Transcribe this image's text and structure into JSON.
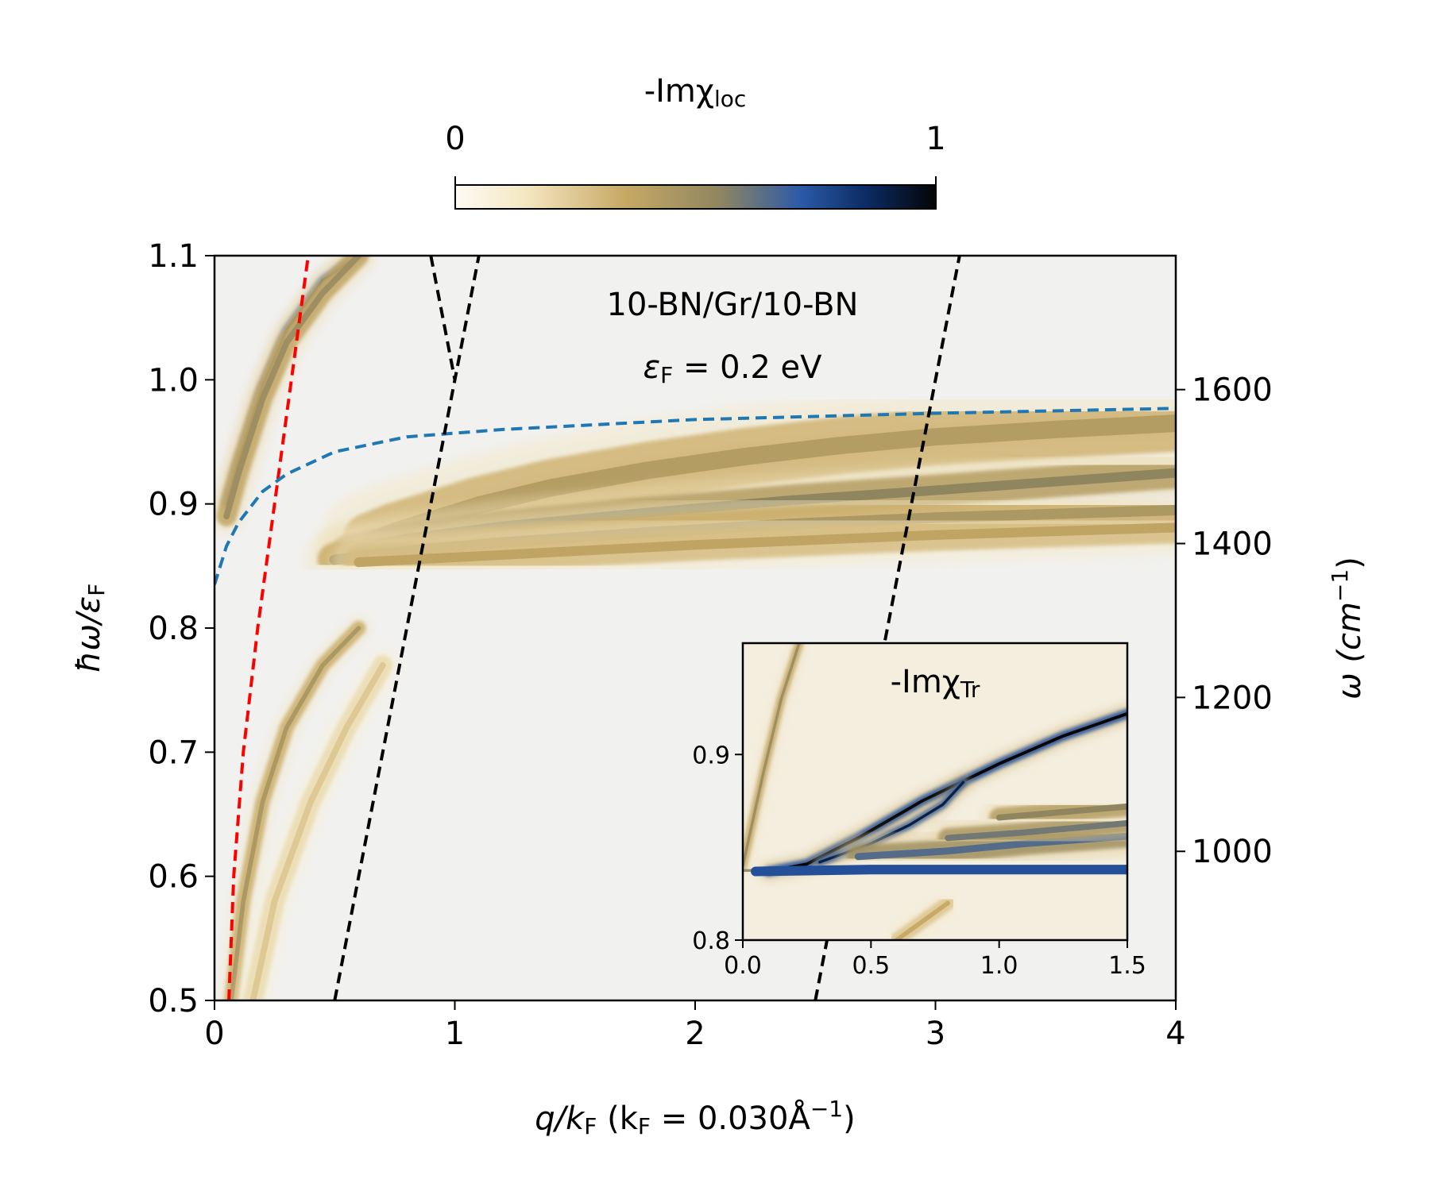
{
  "chart_data": {
    "type": "heatmap",
    "title": "",
    "annotation": {
      "line1": "10-BN/Gr/10-BN",
      "line2_main": "ε",
      "line2_sub": "F",
      "line2_rest": " = 0.2 eV"
    },
    "colorbar": {
      "label_main": "-Imχ",
      "label_sub": "loc",
      "min_label": "0",
      "max_label": "1",
      "range": [
        0,
        1
      ],
      "colors": [
        "#fdfbf4",
        "#f3e6c0",
        "#c8a965",
        "#8f8660",
        "#2b5aa8",
        "#0a2a60",
        "#050505"
      ]
    },
    "xaxis": {
      "label_main": "q/k",
      "label_sub": "F",
      "label_paren": " (k",
      "label_paren_sub": "F",
      "label_rest": " = 0.030Å",
      "label_sup": "−1",
      "label_close": ")",
      "range": [
        0,
        4
      ],
      "ticks": [
        0,
        1,
        2,
        3,
        4
      ],
      "tick_labels": [
        "0",
        "1",
        "2",
        "3",
        "4"
      ]
    },
    "yaxis": {
      "label_main": "ħω/ε",
      "label_sub": "F",
      "range": [
        0.5,
        1.1
      ],
      "ticks": [
        0.5,
        0.6,
        0.7,
        0.8,
        0.9,
        1.0,
        1.1
      ],
      "tick_labels": [
        "0.5",
        "0.6",
        "0.7",
        "0.8",
        "0.9",
        "1.0",
        "1.1"
      ]
    },
    "y2axis": {
      "label_main": "ω (cm",
      "label_sup": "−1",
      "label_close": ")",
      "ticks": [
        1000,
        1200,
        1400,
        1600
      ],
      "tick_labels": [
        "1000",
        "1200",
        "1400",
        "1600"
      ],
      "tick_positions_in_y": [
        0.6201,
        0.7441,
        0.8681,
        0.9921
      ]
    },
    "dashed_lines": [
      {
        "name": "red",
        "color": "#ff0000",
        "x": [
          0.06,
          0.08,
          0.12,
          0.18,
          0.25,
          0.32,
          0.39
        ],
        "y": [
          0.5,
          0.6,
          0.7,
          0.8,
          0.9,
          1.0,
          1.1
        ]
      },
      {
        "name": "blue",
        "color": "#1f77b4",
        "x": [
          0.0,
          0.05,
          0.1,
          0.2,
          0.3,
          0.5,
          0.8,
          1.2,
          2.0,
          3.0,
          4.0
        ],
        "y": [
          0.835,
          0.866,
          0.885,
          0.91,
          0.924,
          0.942,
          0.954,
          0.96,
          0.968,
          0.973,
          0.977
        ]
      },
      {
        "name": "black-1",
        "color": "#000000",
        "x": [
          0.5,
          1.1
        ],
        "y": [
          0.5,
          1.1
        ]
      },
      {
        "name": "black-2",
        "color": "#000000",
        "x": [
          0.9,
          1.0
        ],
        "y": [
          1.1,
          1.0
        ]
      },
      {
        "name": "black-3",
        "color": "#000000",
        "x": [
          2.5,
          3.1
        ],
        "y": [
          0.5,
          1.1
        ]
      }
    ],
    "bands": [
      {
        "name": "upper-left-bright",
        "intensity": 1.0,
        "width": 6,
        "x": [
          0.05,
          0.1,
          0.2,
          0.3,
          0.45,
          0.6
        ],
        "y": [
          0.9,
          0.935,
          0.995,
          1.04,
          1.08,
          1.1
        ]
      },
      {
        "name": "upper-left-shoulder",
        "intensity": 0.5,
        "width": 14,
        "x": [
          0.05,
          0.1,
          0.2,
          0.3,
          0.45,
          0.6
        ],
        "y": [
          0.89,
          0.925,
          0.985,
          1.03,
          1.07,
          1.1
        ]
      },
      {
        "name": "main-bright",
        "intensity": 1.0,
        "width": 8,
        "x": [
          0.65,
          0.75,
          0.9,
          1.1,
          1.4,
          1.8,
          2.2,
          2.6,
          3.0,
          3.5,
          4.0
        ],
        "y": [
          0.87,
          0.878,
          0.887,
          0.899,
          0.913,
          0.927,
          0.938,
          0.947,
          0.954,
          0.96,
          0.965
        ]
      },
      {
        "name": "main-glow",
        "intensity": 0.42,
        "width": 40,
        "x": [
          0.65,
          0.75,
          0.9,
          1.1,
          1.4,
          1.8,
          2.2,
          2.6,
          3.0,
          3.5,
          4.0
        ],
        "y": [
          0.87,
          0.878,
          0.887,
          0.899,
          0.913,
          0.927,
          0.938,
          0.947,
          0.954,
          0.96,
          0.965
        ]
      },
      {
        "name": "second-band",
        "intensity": 0.55,
        "width": 22,
        "x": [
          0.55,
          0.8,
          1.2,
          1.8,
          2.4,
          3.0,
          3.5,
          4.0
        ],
        "y": [
          0.862,
          0.872,
          0.882,
          0.893,
          0.903,
          0.911,
          0.918,
          0.925
        ]
      },
      {
        "name": "third-band",
        "intensity": 0.45,
        "width": 24,
        "x": [
          0.5,
          0.8,
          1.2,
          1.8,
          2.4,
          3.0,
          3.5,
          4.0
        ],
        "y": [
          0.855,
          0.862,
          0.869,
          0.877,
          0.884,
          0.889,
          0.892,
          0.895
        ]
      },
      {
        "name": "fourth-band",
        "intensity": 0.38,
        "width": 22,
        "x": [
          0.6,
          1.0,
          1.5,
          2.0,
          2.5,
          3.0,
          3.5,
          4.0
        ],
        "y": [
          0.853,
          0.857,
          0.862,
          0.867,
          0.871,
          0.875,
          0.878,
          0.881
        ]
      },
      {
        "name": "lower-left-1",
        "intensity": 0.45,
        "width": 10,
        "x": [
          0.07,
          0.12,
          0.2,
          0.3,
          0.45,
          0.6
        ],
        "y": [
          0.5,
          0.58,
          0.66,
          0.72,
          0.77,
          0.8
        ]
      },
      {
        "name": "lower-left-2",
        "intensity": 0.25,
        "width": 14,
        "x": [
          0.16,
          0.25,
          0.4,
          0.55,
          0.7
        ],
        "y": [
          0.5,
          0.58,
          0.66,
          0.72,
          0.77
        ]
      }
    ],
    "inset": {
      "label_main": "-Imχ",
      "label_sub": "Tr",
      "xrange": [
        0,
        1.5
      ],
      "yrange": [
        0.8,
        0.96
      ],
      "xticks": [
        0,
        0.5,
        1.0,
        1.5
      ],
      "xtick_labels": [
        "0.0",
        "0.5",
        "1.0",
        "1.5"
      ],
      "yticks": [
        0.8,
        0.9
      ],
      "ytick_labels": [
        "0.8",
        "0.9"
      ],
      "bands": [
        {
          "name": "inset-left",
          "intensity": 0.5,
          "width": 6,
          "x": [
            0.0,
            0.08,
            0.15,
            0.22
          ],
          "y": [
            0.84,
            0.89,
            0.93,
            0.96
          ]
        },
        {
          "name": "inset-main",
          "intensity": 1.0,
          "width": 7,
          "x": [
            0.1,
            0.25,
            0.45,
            0.7,
            1.0,
            1.25,
            1.5
          ],
          "y": [
            0.837,
            0.841,
            0.855,
            0.875,
            0.895,
            0.91,
            0.922
          ]
        },
        {
          "name": "inset-loop",
          "intensity": 0.9,
          "width": 6,
          "x": [
            0.3,
            0.5,
            0.65,
            0.78,
            0.86
          ],
          "y": [
            0.842,
            0.852,
            0.862,
            0.873,
            0.885
          ]
        },
        {
          "name": "inset-h1",
          "intensity": 0.75,
          "width": 22,
          "x": [
            0.05,
            0.5,
            1.0,
            1.5
          ],
          "y": [
            0.837,
            0.838,
            0.838,
            0.838
          ]
        },
        {
          "name": "inset-h2",
          "intensity": 0.65,
          "width": 16,
          "x": [
            0.45,
            0.8,
            1.1,
            1.5
          ],
          "y": [
            0.845,
            0.848,
            0.852,
            0.856
          ]
        },
        {
          "name": "inset-h3",
          "intensity": 0.6,
          "width": 14,
          "x": [
            0.8,
            1.1,
            1.5
          ],
          "y": [
            0.855,
            0.858,
            0.863
          ]
        },
        {
          "name": "inset-h4",
          "intensity": 0.55,
          "width": 14,
          "x": [
            1.0,
            1.5
          ],
          "y": [
            0.866,
            0.872
          ]
        },
        {
          "name": "inset-lower",
          "intensity": 0.35,
          "width": 10,
          "x": [
            0.6,
            0.7,
            0.8
          ],
          "y": [
            0.8,
            0.81,
            0.82
          ]
        }
      ]
    }
  }
}
